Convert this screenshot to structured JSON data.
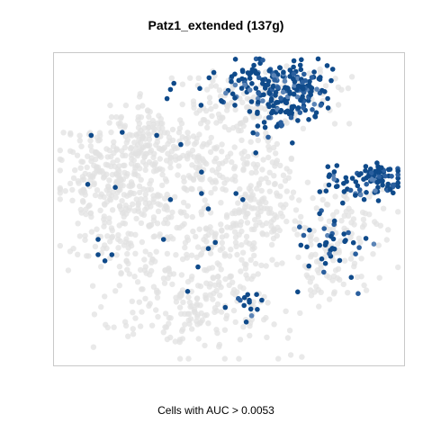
{
  "chart_data": {
    "type": "scatter",
    "title": "Patz1_extended (137g)",
    "xlabel": "Cells with AUC > 0.0053",
    "ylabel": "",
    "xlim": [
      0,
      100
    ],
    "ylim": [
      0,
      100
    ],
    "grid": false,
    "legend": "none",
    "colors": {
      "background_cells": "#e2e2e2",
      "highlight_high": "#0f4a8a",
      "highlight_mid": "#2a5f9e",
      "highlight_low": "#5b84b6",
      "frame": "#c8c8c8"
    },
    "series": [
      {
        "role": "all-cells",
        "clusters": [
          {
            "cx": 14,
            "cy": 62,
            "sx": 7,
            "sy": 8,
            "n": 170,
            "seed": 11
          },
          {
            "cx": 28,
            "cy": 72,
            "sx": 7,
            "sy": 6,
            "n": 130,
            "seed": 12
          },
          {
            "cx": 26,
            "cy": 50,
            "sx": 8,
            "sy": 10,
            "n": 140,
            "seed": 13
          },
          {
            "cx": 44,
            "cy": 66,
            "sx": 6,
            "sy": 7,
            "n": 90,
            "seed": 14
          },
          {
            "cx": 49,
            "cy": 40,
            "sx": 7,
            "sy": 9,
            "n": 110,
            "seed": 15
          },
          {
            "cx": 60,
            "cy": 52,
            "sx": 5,
            "sy": 8,
            "n": 110,
            "seed": 16
          },
          {
            "cx": 40,
            "cy": 18,
            "sx": 13,
            "sy": 8,
            "n": 200,
            "seed": 17
          },
          {
            "cx": 82,
            "cy": 45,
            "sx": 8,
            "sy": 7,
            "n": 90,
            "seed": 18
          },
          {
            "cx": 80,
            "cy": 30,
            "sx": 5,
            "sy": 5,
            "n": 50,
            "seed": 19
          },
          {
            "cx": 68,
            "cy": 87,
            "sx": 8,
            "sy": 5,
            "n": 60,
            "seed": 20
          },
          {
            "cx": 48,
            "cy": 84,
            "sx": 7,
            "sy": 5,
            "n": 55,
            "seed": 21
          },
          {
            "cx": 15,
            "cy": 40,
            "sx": 6,
            "sy": 6,
            "n": 60,
            "seed": 22
          },
          {
            "cx": 60,
            "cy": 72,
            "sx": 5,
            "sy": 7,
            "n": 50,
            "seed": 23
          }
        ]
      },
      {
        "role": "cells-auc-above-threshold",
        "clusters": [
          {
            "cx": 68,
            "cy": 88,
            "sx": 6,
            "sy": 5,
            "n": 160,
            "seed": 31
          },
          {
            "cx": 59,
            "cy": 93,
            "sx": 5,
            "sy": 3,
            "n": 45,
            "seed": 32
          },
          {
            "cx": 94,
            "cy": 60,
            "sx": 3.5,
            "sy": 2.5,
            "n": 70,
            "seed": 33
          },
          {
            "cx": 83,
            "cy": 58,
            "sx": 4,
            "sy": 3,
            "n": 30,
            "seed": 34
          },
          {
            "cx": 80,
            "cy": 40,
            "sx": 6,
            "sy": 6,
            "n": 40,
            "seed": 35
          },
          {
            "cx": 63,
            "cy": 75,
            "sx": 3,
            "sy": 5,
            "n": 18,
            "seed": 36
          },
          {
            "cx": 50,
            "cy": 87,
            "sx": 4,
            "sy": 4,
            "n": 18,
            "seed": 37
          },
          {
            "cx": 54,
            "cy": 18,
            "sx": 3,
            "sy": 4,
            "n": 12,
            "seed": 38
          }
        ],
        "points": [
          {
            "x": 10,
            "y": 74
          },
          {
            "x": 19,
            "y": 75
          },
          {
            "x": 29,
            "y": 74
          },
          {
            "x": 36,
            "y": 71
          },
          {
            "x": 9,
            "y": 58
          },
          {
            "x": 17,
            "y": 57
          },
          {
            "x": 12,
            "y": 40
          },
          {
            "x": 16,
            "y": 35
          },
          {
            "x": 12,
            "y": 35
          },
          {
            "x": 14,
            "y": 33
          },
          {
            "x": 33,
            "y": 53
          },
          {
            "x": 31,
            "y": 40
          },
          {
            "x": 42,
            "y": 62
          },
          {
            "x": 42,
            "y": 55
          },
          {
            "x": 41,
            "y": 31
          },
          {
            "x": 44,
            "y": 37
          },
          {
            "x": 52,
            "y": 55
          },
          {
            "x": 54,
            "y": 53
          },
          {
            "x": 33,
            "y": 89
          },
          {
            "x": 32,
            "y": 86
          },
          {
            "x": 34,
            "y": 91
          },
          {
            "x": 44,
            "y": 50
          },
          {
            "x": 46,
            "y": 39
          },
          {
            "x": 38,
            "y": 23
          },
          {
            "x": 55,
            "y": 13
          },
          {
            "x": 58,
            "y": 22
          }
        ]
      }
    ]
  }
}
